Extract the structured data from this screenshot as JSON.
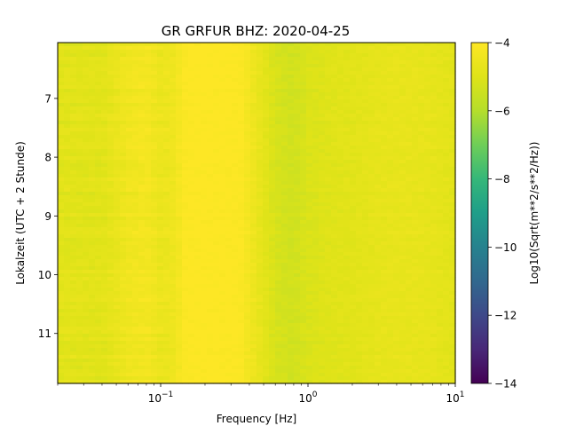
{
  "chart_data": {
    "type": "heatmap",
    "title": "GR GRFUR  BHZ: 2020-04-25",
    "xlabel": "Frequency [Hz]",
    "ylabel": "Lokalzeit (UTC + 2 Stunde)",
    "x_scale": "log",
    "xlim": [
      0.02,
      10
    ],
    "x_ticks": [
      {
        "base": "10",
        "exp": "−1",
        "value": 0.1
      },
      {
        "base": "10",
        "exp": "0",
        "value": 1
      },
      {
        "base": "10",
        "exp": "1",
        "value": 10
      }
    ],
    "ylim": [
      6.05,
      11.85
    ],
    "y_inverted": true,
    "y_ticks": [
      "7",
      "8",
      "9",
      "10",
      "11"
    ],
    "y_tick_values": [
      7,
      8,
      9,
      10,
      11
    ],
    "colorbar": {
      "label": "Log10(Sqrt(m**2/s**2/Hz))",
      "range": [
        -14,
        -4
      ],
      "ticks": [
        "−4",
        "−6",
        "−8",
        "−10",
        "−12",
        "−14"
      ],
      "tick_values": [
        -4,
        -6,
        -8,
        -10,
        -12,
        -14
      ],
      "colormap": "viridis"
    },
    "profile": {
      "description_free_values_only": true,
      "freq": [
        0.02,
        0.04,
        0.06,
        0.08,
        0.1,
        0.12,
        0.15,
        0.25,
        0.35,
        0.45,
        0.6,
        0.8,
        1.0,
        1.5,
        2.0,
        3.0,
        5.0,
        7.0,
        10.0
      ],
      "value": [
        -4.9,
        -4.9,
        -4.45,
        -4.3,
        -4.6,
        -4.5,
        -4.0,
        -4.0,
        -4.05,
        -4.6,
        -5.2,
        -5.35,
        -5.1,
        -4.95,
        -4.9,
        -4.75,
        -4.7,
        -4.75,
        -4.9
      ]
    }
  }
}
